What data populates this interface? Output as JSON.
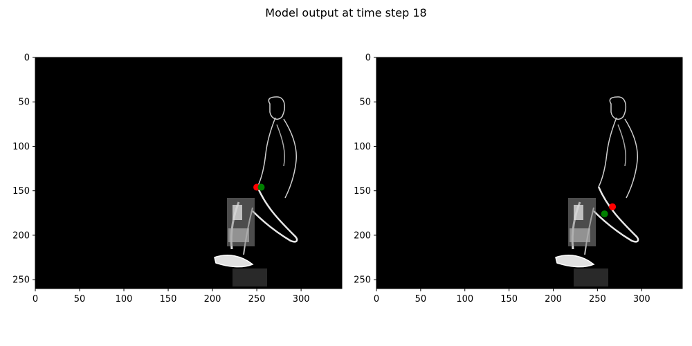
{
  "figure": {
    "title": "Model output at time step 18"
  },
  "chart_data": [
    {
      "type": "scatter",
      "background": "image",
      "xlim": [
        0,
        346
      ],
      "ylim": [
        260,
        0
      ],
      "x_ticks": [
        0,
        50,
        100,
        150,
        200,
        250,
        300
      ],
      "y_ticks": [
        0,
        50,
        100,
        150,
        200,
        250
      ],
      "series": [
        {
          "color": "#ff0000",
          "points": [
            {
              "x": 250,
              "y": 146
            }
          ]
        },
        {
          "color": "#008000",
          "points": [
            {
              "x": 255,
              "y": 146
            }
          ]
        }
      ]
    },
    {
      "type": "scatter",
      "background": "image",
      "xlim": [
        0,
        346
      ],
      "ylim": [
        260,
        0
      ],
      "x_ticks": [
        0,
        50,
        100,
        150,
        200,
        250,
        300
      ],
      "y_ticks": [
        0,
        50,
        100,
        150,
        200,
        250
      ],
      "series": [
        {
          "color": "#ff0000",
          "points": [
            {
              "x": 267,
              "y": 168
            }
          ]
        },
        {
          "color": "#008000",
          "points": [
            {
              "x": 258,
              "y": 176
            }
          ]
        }
      ]
    }
  ]
}
